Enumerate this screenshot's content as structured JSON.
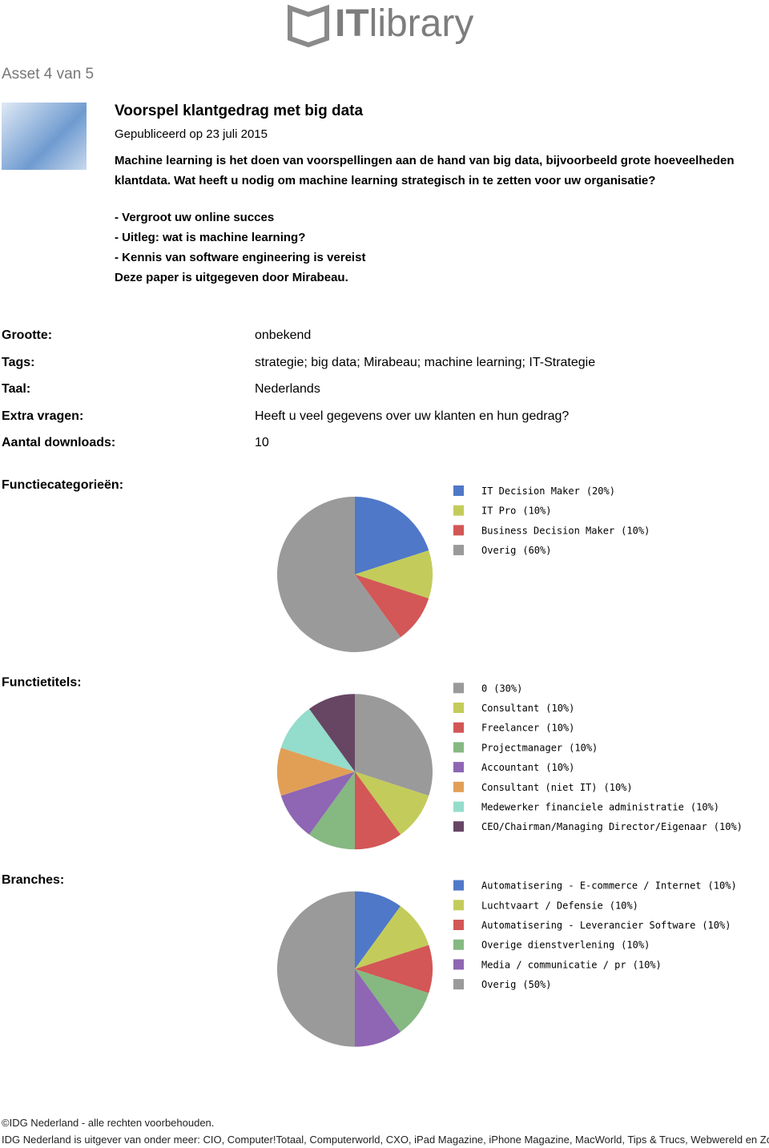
{
  "header": {
    "logo_bold": "IT",
    "logo_rest": "library"
  },
  "asset_counter": "Asset 4 van 5",
  "article": {
    "title": "Voorspel klantgedrag met big data",
    "published": "Gepubliceerd op 23 juli 2015",
    "description": "Machine learning is het doen van voorspellingen aan de hand van big data, bijvoorbeeld grote hoeveelheden klantdata. Wat heeft u nodig om machine learning strategisch in te zetten voor uw organisatie?",
    "bullets": [
      "- Vergroot uw online succes",
      "- Uitleg: wat is machine learning?",
      "- Kennis van software engineering is vereist"
    ],
    "publisher": "Deze paper is uitgegeven door Mirabeau."
  },
  "details": [
    {
      "label": "Grootte:",
      "value": "onbekend"
    },
    {
      "label": "Tags:",
      "value": "strategie; big data; Mirabeau; machine learning; IT-Strategie"
    },
    {
      "label": "Taal:",
      "value": "Nederlands"
    },
    {
      "label": "Extra vragen:",
      "value": "Heeft u veel gegevens over uw klanten en hun gedrag?"
    },
    {
      "label": "Aantal downloads:",
      "value": 10
    }
  ],
  "chart_data": [
    {
      "type": "pie",
      "title": "Functiecategorieën:",
      "categories": [
        "IT Decision Maker",
        "IT Pro",
        "Business Decision Maker",
        "Overig"
      ],
      "values": [
        20,
        10,
        10,
        60
      ],
      "value_labels": [
        "(20%)",
        "(10%)",
        "(10%)",
        "(60%)"
      ],
      "colors": [
        "#4f78c8",
        "#c3cc5a",
        "#d25756",
        "#9a9a9a"
      ]
    },
    {
      "type": "pie",
      "title": "Functietitels:",
      "categories": [
        "0",
        "Consultant",
        "Freelancer",
        "Projectmanager",
        "Accountant",
        "Consultant (niet IT)",
        "Medewerker financiele administratie",
        "CEO/Chairman/Managing Director/Eigenaar"
      ],
      "values": [
        30,
        10,
        10,
        10,
        10,
        10,
        10,
        10
      ],
      "value_labels": [
        "(30%)",
        "(10%)",
        "(10%)",
        "(10%)",
        "(10%)",
        "(10%)",
        "(10%)",
        "(10%)"
      ],
      "colors": [
        "#9a9a9a",
        "#c3cc5a",
        "#d25756",
        "#86b882",
        "#8e66b3",
        "#e19f56",
        "#94dccb",
        "#674664"
      ]
    },
    {
      "type": "pie",
      "title": "Branches:",
      "categories": [
        "Automatisering - E-commerce / Internet",
        "Luchtvaart / Defensie",
        "Automatisering - Leverancier Software",
        "Overige dienstverlening",
        "Media / communicatie / pr",
        "Overig"
      ],
      "values": [
        10,
        10,
        10,
        10,
        10,
        50
      ],
      "value_labels": [
        "(10%)",
        "(10%)",
        "(10%)",
        "(10%)",
        "(10%)",
        "(50%)"
      ],
      "colors": [
        "#4f78c8",
        "#c3cc5a",
        "#d25756",
        "#86b882",
        "#8e66b3",
        "#9a9a9a"
      ]
    }
  ],
  "footer": {
    "copyright": "©IDG Nederland - alle rechten voorbehouden.",
    "publishers": "IDG Nederland is uitgever van onder meer: CIO, Computer!Totaal, Computerworld, CXO, iPad Magazine, iPhone Magazine, MacWorld, Tips & Trucs, Webwereld en Zoom.nl"
  }
}
